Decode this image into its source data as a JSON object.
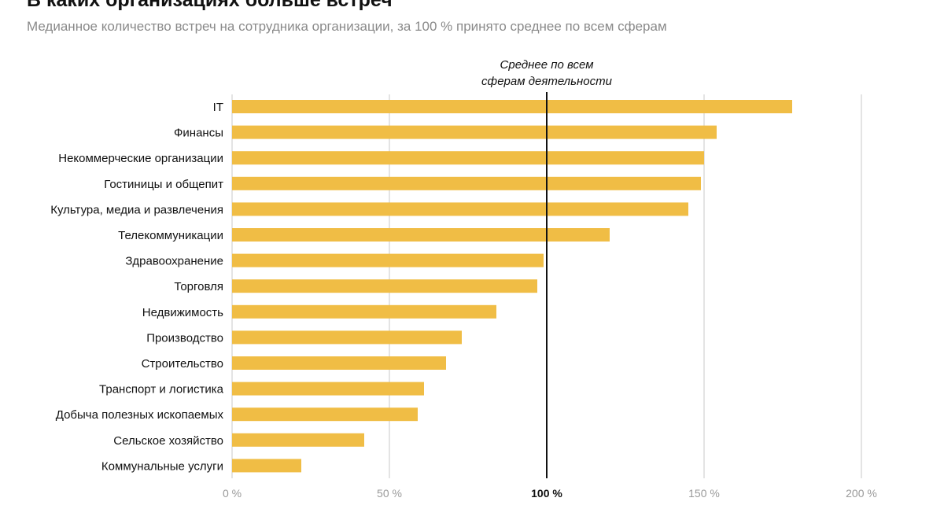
{
  "header": {
    "title": "В каких организациях больше встреч",
    "subtitle": "Медианное количество встреч на сотрудника организации, за 100 % принято среднее по всем сферам"
  },
  "chart_data": {
    "type": "bar",
    "orientation": "horizontal",
    "categories": [
      "IT",
      "Финансы",
      "Некоммерческие организации",
      "Гостиницы и общепит",
      "Культура, медиа и развлечения",
      "Телекоммуникации",
      "Здравоохранение",
      "Торговля",
      "Недвижимость",
      "Производство",
      "Строительство",
      "Транспорт и логистика",
      "Добыча полезных ископаемых",
      "Сельское хозяйство",
      "Коммунальные услуги"
    ],
    "values": [
      178,
      154,
      150,
      149,
      145,
      120,
      99,
      97,
      84,
      73,
      68,
      61,
      59,
      42,
      22
    ],
    "unit": "%",
    "xlim": [
      0,
      200
    ],
    "ticks": [
      0,
      50,
      100,
      150,
      200
    ],
    "tick_labels": [
      "0 %",
      "50 %",
      "100 %",
      "150 %",
      "200 %"
    ],
    "emphasized_tick": "100 %",
    "reference_value": 100,
    "reference_label_lines": [
      "Среднее по всем",
      "сферам деятельности"
    ],
    "bar_color": "#F0BD45",
    "grid_color": "#C8C8C8",
    "reference_color": "#111111"
  }
}
